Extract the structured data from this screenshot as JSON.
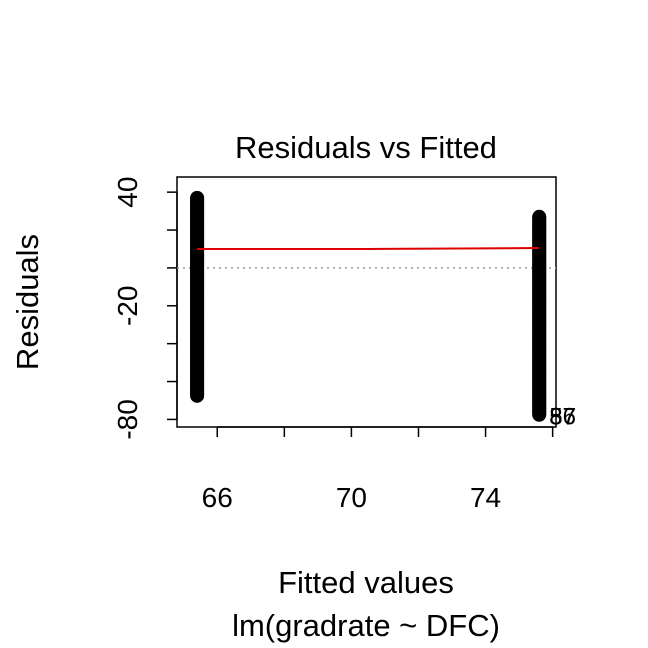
{
  "chart_data": {
    "type": "scatter",
    "title": "Residuals vs Fitted",
    "xlabel": "Fitted values",
    "sub_label": "lm(gradrate ~ DFC)",
    "ylabel": "Residuals",
    "xlim": [
      64.8,
      76.1
    ],
    "ylim": [
      -84,
      48
    ],
    "x_ticks": [
      66,
      68,
      70,
      72,
      74,
      76
    ],
    "x_tick_labels": [
      "66",
      "",
      "70",
      "",
      "74",
      ""
    ],
    "y_ticks": [
      -80,
      -60,
      -40,
      -20,
      0,
      20,
      40
    ],
    "y_tick_labels": [
      "-80",
      "",
      "",
      "-20",
      "",
      "",
      "40"
    ],
    "groups": [
      {
        "x": 65.4,
        "y_min": -68,
        "y_max": 37
      },
      {
        "x": 75.6,
        "y_min": -78,
        "y_max": 27
      }
    ],
    "smooth_line": {
      "color": "#dd0000",
      "points": [
        [
          65.4,
          10
        ],
        [
          70.5,
          10
        ],
        [
          75.6,
          10.5
        ]
      ]
    },
    "zero_line": 0,
    "point_labels": [
      {
        "text": "87",
        "x": 75.6,
        "y": -78
      },
      {
        "text": "37",
        "x": 75.6,
        "y": -78
      },
      {
        "text": "56",
        "x": 75.6,
        "y": -78
      }
    ]
  }
}
